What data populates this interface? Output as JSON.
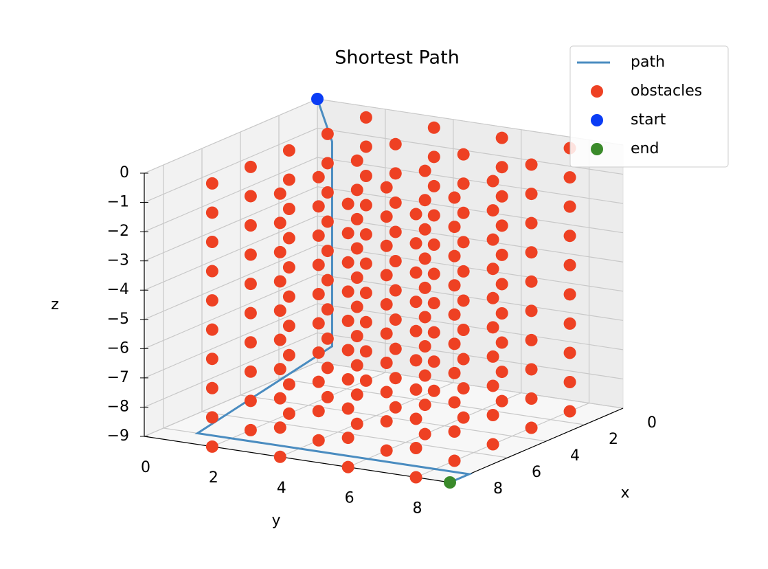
{
  "chart_data": {
    "type": "scatter3d",
    "title": "Shortest Path",
    "xlabel": "x",
    "ylabel": "y",
    "zlabel": "z",
    "xlim": [
      0,
      9
    ],
    "ylim": [
      0,
      9
    ],
    "zlim": [
      -9,
      0
    ],
    "xticks": [
      0,
      2,
      4,
      6,
      8
    ],
    "yticks": [
      0,
      2,
      4,
      6,
      8
    ],
    "zticks": [
      0,
      {
        "value": -1,
        "label": "−1"
      },
      {
        "value": -2,
        "label": "−2"
      },
      {
        "value": -3,
        "label": "−3"
      },
      {
        "value": -4,
        "label": "−4"
      },
      {
        "value": -5,
        "label": "−5"
      },
      {
        "value": -6,
        "label": "−6"
      },
      {
        "value": -7,
        "label": "−7"
      },
      {
        "value": -8,
        "label": "−8"
      },
      {
        "value": -9,
        "label": "−9"
      }
    ],
    "grid": true,
    "legend": "upper right",
    "series": [
      {
        "name": "path",
        "kind": "line",
        "color": "#4a8cc0",
        "x": [
          0,
          1,
          1,
          8,
          8,
          9
        ],
        "y": [
          0,
          1,
          1,
          1,
          9,
          9
        ],
        "z": [
          0,
          -1,
          -8,
          -9,
          -9,
          -9
        ]
      },
      {
        "name": "obstacles",
        "kind": "points",
        "color": "#ee4123",
        "x": [
          1,
          3,
          5,
          7,
          9,
          1,
          3,
          5,
          7,
          9,
          1,
          3,
          5,
          7,
          9,
          1,
          3,
          5,
          7,
          9,
          1,
          3,
          5,
          7,
          9,
          1,
          3,
          5,
          7,
          9,
          1,
          3,
          5,
          7,
          9,
          1,
          3,
          5,
          7,
          9,
          1,
          3,
          5,
          7,
          9,
          1,
          3,
          5,
          7,
          9,
          1,
          3,
          5,
          7,
          9,
          1,
          3,
          5,
          7,
          9,
          1,
          3,
          5,
          7,
          9,
          1,
          3,
          5,
          7,
          9,
          1,
          3,
          5,
          7,
          9,
          1,
          3,
          5,
          7,
          9,
          1,
          3,
          5,
          7,
          9,
          1,
          3,
          5,
          7,
          9,
          1,
          3,
          5,
          7,
          9,
          1,
          3,
          5,
          7,
          9,
          1,
          3,
          5,
          7,
          9,
          1,
          3,
          5,
          7,
          9,
          1,
          3,
          5,
          7,
          9,
          1,
          3,
          5,
          7,
          9,
          1,
          3,
          5,
          7,
          9,
          1,
          3,
          5,
          7,
          9,
          1,
          3,
          5,
          7,
          9,
          1,
          3,
          5,
          7,
          9,
          1,
          3,
          5,
          7,
          9,
          1,
          3,
          5,
          7,
          9,
          1,
          3,
          5,
          7,
          9,
          1,
          3,
          5,
          7,
          9,
          1,
          3,
          5,
          7,
          9,
          1,
          3,
          5,
          7,
          9,
          1,
          3,
          5,
          7,
          9,
          1,
          3,
          5,
          7,
          9,
          1,
          3,
          5,
          7,
          9,
          1,
          3,
          5,
          7,
          9,
          1,
          3,
          5,
          7,
          9,
          1,
          3,
          5,
          7,
          9
        ],
        "y": [
          2,
          2,
          2,
          2,
          2,
          4,
          4,
          4,
          4,
          4,
          6,
          6,
          6,
          6,
          6,
          8,
          8,
          8,
          8,
          8,
          2,
          2,
          2,
          2,
          2,
          4,
          4,
          4,
          4,
          4,
          6,
          6,
          6,
          6,
          6,
          8,
          8,
          8,
          8,
          8,
          2,
          2,
          2,
          2,
          2,
          4,
          4,
          4,
          4,
          4,
          6,
          6,
          6,
          6,
          6,
          8,
          8,
          8,
          8,
          8,
          2,
          2,
          2,
          2,
          2,
          4,
          4,
          4,
          4,
          4,
          6,
          6,
          6,
          6,
          6,
          8,
          8,
          8,
          8,
          8,
          2,
          2,
          2,
          2,
          2,
          4,
          4,
          4,
          4,
          4,
          6,
          6,
          6,
          6,
          6,
          8,
          8,
          8,
          8,
          8,
          2,
          2,
          2,
          2,
          2,
          4,
          4,
          4,
          4,
          4,
          6,
          6,
          6,
          6,
          6,
          8,
          8,
          8,
          8,
          8,
          2,
          2,
          2,
          2,
          2,
          4,
          4,
          4,
          4,
          4,
          6,
          6,
          6,
          6,
          6,
          8,
          8,
          8,
          8,
          8,
          2,
          2,
          2,
          2,
          2,
          4,
          4,
          4,
          4,
          4,
          6,
          6,
          6,
          6,
          6,
          8,
          8,
          8,
          8,
          8,
          2,
          2,
          2,
          2,
          2,
          4,
          4,
          4,
          4,
          4,
          6,
          6,
          6,
          6,
          6,
          8,
          8,
          8,
          8,
          8,
          2,
          2,
          2,
          2,
          2,
          4,
          4,
          4,
          4,
          4,
          6,
          6,
          6,
          6,
          6,
          8,
          8,
          8,
          8,
          8
        ],
        "z": [
          0,
          0,
          0,
          0,
          0,
          0,
          0,
          0,
          0,
          0,
          0,
          0,
          0,
          0,
          0,
          0,
          0,
          0,
          0,
          0,
          -1,
          -1,
          -1,
          -1,
          -1,
          -1,
          -1,
          -1,
          -1,
          -1,
          -1,
          -1,
          -1,
          -1,
          -1,
          -1,
          -1,
          -1,
          -1,
          -1,
          -2,
          -2,
          -2,
          -2,
          -2,
          -2,
          -2,
          -2,
          -2,
          -2,
          -2,
          -2,
          -2,
          -2,
          -2,
          -2,
          -2,
          -2,
          -2,
          -2,
          -3,
          -3,
          -3,
          -3,
          -3,
          -3,
          -3,
          -3,
          -3,
          -3,
          -3,
          -3,
          -3,
          -3,
          -3,
          -3,
          -3,
          -3,
          -3,
          -3,
          -4,
          -4,
          -4,
          -4,
          -4,
          -4,
          -4,
          -4,
          -4,
          -4,
          -4,
          -4,
          -4,
          -4,
          -4,
          -4,
          -4,
          -4,
          -4,
          -4,
          -5,
          -5,
          -5,
          -5,
          -5,
          -5,
          -5,
          -5,
          -5,
          -5,
          -5,
          -5,
          -5,
          -5,
          -5,
          -5,
          -5,
          -5,
          -5,
          -5,
          -6,
          -6,
          -6,
          -6,
          -6,
          -6,
          -6,
          -6,
          -6,
          -6,
          -6,
          -6,
          -6,
          -6,
          -6,
          -6,
          -6,
          -6,
          -6,
          -6,
          -7,
          -7,
          -7,
          -7,
          -7,
          -7,
          -7,
          -7,
          -7,
          -7,
          -7,
          -7,
          -7,
          -7,
          -7,
          -7,
          -7,
          -7,
          -7,
          -7,
          -8,
          -8,
          -8,
          -8,
          -8,
          -8,
          -8,
          -8,
          -8,
          -8,
          -8,
          -8,
          -8,
          -8,
          -8,
          -8,
          -8,
          -8,
          -8,
          -8,
          -9,
          -9,
          -9,
          -9,
          -9,
          -9,
          -9,
          -9,
          -9,
          -9,
          -9,
          -9,
          -9,
          -9,
          -9,
          -9,
          -9,
          -9,
          -9,
          -9
        ]
      },
      {
        "name": "start",
        "kind": "points",
        "color": "#0a3cf5",
        "x": [
          0
        ],
        "y": [
          0
        ],
        "z": [
          0
        ]
      },
      {
        "name": "end",
        "kind": "points",
        "color": "#3a8a2a",
        "x": [
          9
        ],
        "y": [
          9
        ],
        "z": [
          -9
        ]
      }
    ]
  }
}
